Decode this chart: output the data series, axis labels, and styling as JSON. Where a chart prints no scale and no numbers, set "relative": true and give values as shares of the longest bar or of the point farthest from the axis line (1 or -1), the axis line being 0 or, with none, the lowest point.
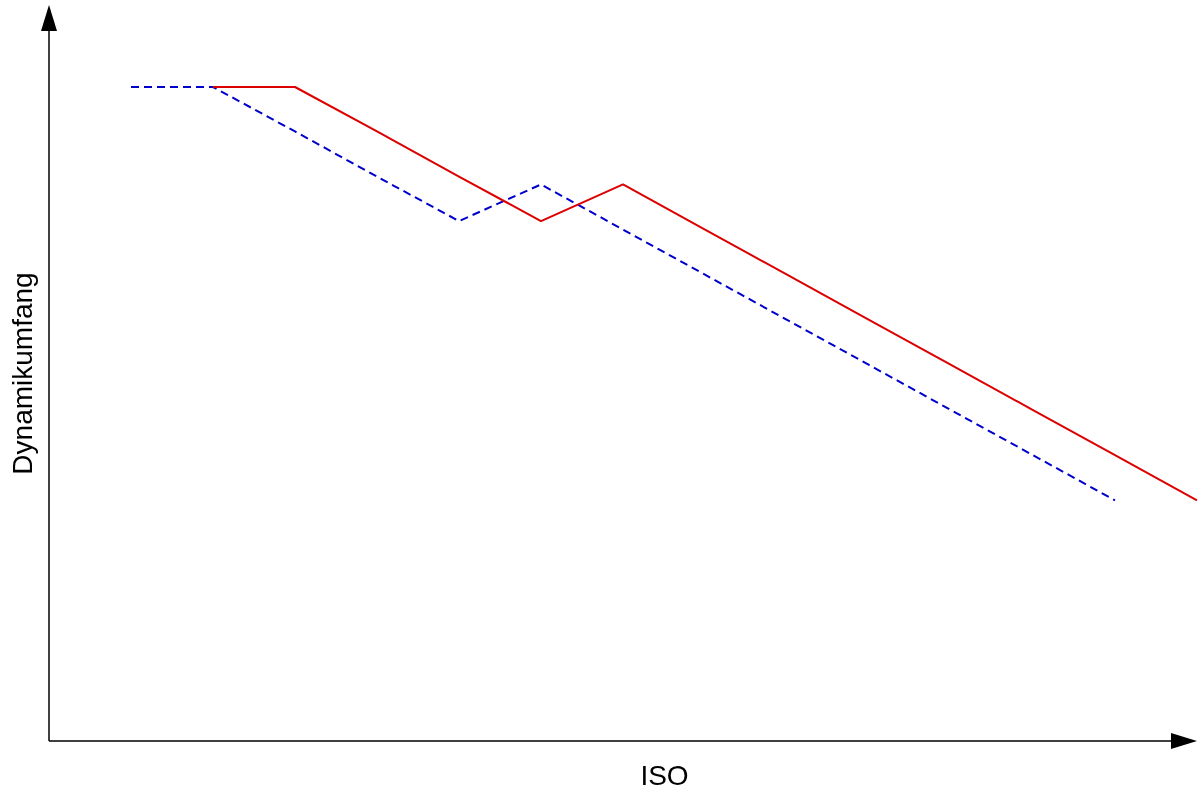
{
  "chart_data": {
    "type": "line",
    "xlabel": "ISO",
    "ylabel": "Dynamikumfang",
    "relative": true,
    "tick_labels": false,
    "categories": [
      null,
      null,
      null,
      null,
      null,
      null,
      null,
      null,
      null,
      null,
      null,
      null,
      null,
      null
    ],
    "series": [
      {
        "color": "#0000cc",
        "line_style": "dashed",
        "values": [
          1,
          1,
          0.932,
          0.863,
          0.795,
          0.851,
          0.782,
          0.713,
          0.644,
          0.575,
          0.506,
          0.437,
          0.368,
          null
        ]
      },
      {
        "color": "#dd0000",
        "line_style": "solid",
        "values": [
          null,
          1,
          1,
          0.932,
          0.863,
          0.795,
          0.851,
          0.782,
          0.713,
          0.644,
          0.575,
          0.506,
          0.437,
          0.368
        ]
      }
    ]
  }
}
